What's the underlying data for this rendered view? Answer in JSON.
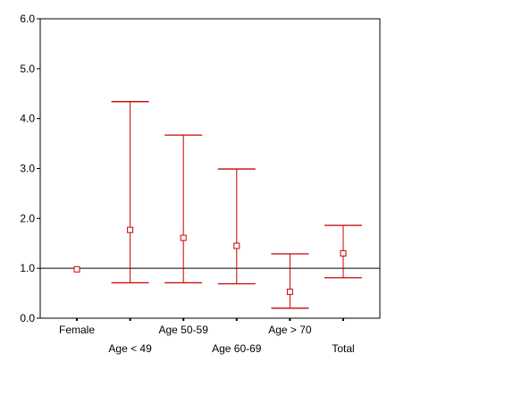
{
  "chart_data": {
    "type": "errorbar",
    "title": "",
    "xlabel": "",
    "ylabel": "",
    "ylim": [
      0,
      6
    ],
    "y_ticks": [
      "0.0",
      "1.0",
      "2.0",
      "3.0",
      "4.0",
      "5.0",
      "6.0"
    ],
    "y_tick_values": [
      0,
      1,
      2,
      3,
      4,
      5,
      6
    ],
    "reference_line": 1.0,
    "grid": false,
    "categories": [
      "Female",
      "Age < 49",
      "Age 50-59",
      "Age 60-69",
      "Age > 70",
      "Total"
    ],
    "points": [
      {
        "category": "Female",
        "value": 0.98,
        "lower": null,
        "upper": null
      },
      {
        "category": "Age < 49",
        "value": 1.77,
        "lower": 0.71,
        "upper": 4.34
      },
      {
        "category": "Age 50-59",
        "value": 1.61,
        "lower": 0.71,
        "upper": 3.67
      },
      {
        "category": "Age 60-69",
        "value": 1.45,
        "lower": 0.69,
        "upper": 2.99
      },
      {
        "category": "Age > 70",
        "value": 0.53,
        "lower": 0.2,
        "upper": 1.29
      },
      {
        "category": "Total",
        "value": 1.3,
        "lower": 0.81,
        "upper": 1.86
      }
    ],
    "colors": {
      "marker": "#cc0000",
      "axis": "#000000",
      "reference": "#000000"
    }
  }
}
